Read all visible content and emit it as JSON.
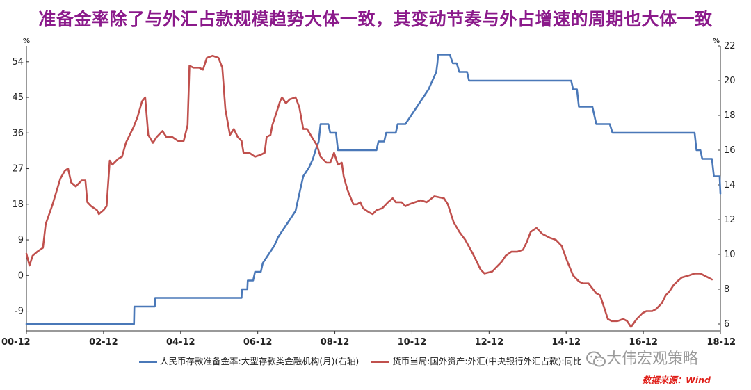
{
  "title": "准备金率除了与外汇占款规模趋势大体一致，其变动节奏与外占增速的周期也大体一致",
  "left_unit": "%",
  "right_unit": "%",
  "source": "数据来源：Wind",
  "watermark": "大伟宏观策略",
  "colors": {
    "blue": "#4a78b8",
    "red": "#c0504d",
    "title": "#8b1a8b",
    "source": "#e0201a"
  },
  "chart_data": {
    "type": "line",
    "xlabels": [
      "00-12",
      "02-12",
      "04-12",
      "06-12",
      "08-12",
      "10-12",
      "12-12",
      "14-12",
      "16-12",
      "18-12"
    ],
    "xlim": [
      2000.92,
      2018.92
    ],
    "left_axis": {
      "ylim": [
        -14,
        58
      ],
      "ticks": [
        "-9",
        "0",
        "9",
        "18",
        "27",
        "36",
        "45",
        "54"
      ]
    },
    "right_axis": {
      "ylim": [
        5.6,
        22
      ],
      "ticks": [
        "6",
        "8",
        "10",
        "12",
        "14",
        "16",
        "18",
        "20",
        "22"
      ]
    },
    "series": [
      {
        "name": "人民币存款准备金率:大型存款类金融机构(月)(右轴)",
        "axis": "right",
        "color": "#4a78b8",
        "points": [
          [
            2000.92,
            6
          ],
          [
            2003.71,
            6
          ],
          [
            2003.72,
            7
          ],
          [
            2004.25,
            7
          ],
          [
            2004.26,
            7.5
          ],
          [
            2006.5,
            7.5
          ],
          [
            2006.51,
            8
          ],
          [
            2006.65,
            8
          ],
          [
            2006.66,
            8.5
          ],
          [
            2006.8,
            8.5
          ],
          [
            2006.85,
            9
          ],
          [
            2007.0,
            9
          ],
          [
            2007.05,
            9.5
          ],
          [
            2007.2,
            10
          ],
          [
            2007.35,
            10.5
          ],
          [
            2007.45,
            11
          ],
          [
            2007.6,
            11.5
          ],
          [
            2007.75,
            12
          ],
          [
            2007.9,
            12.5
          ],
          [
            2008.0,
            13.5
          ],
          [
            2008.1,
            14.5
          ],
          [
            2008.25,
            15
          ],
          [
            2008.35,
            15.5
          ],
          [
            2008.42,
            16
          ],
          [
            2008.5,
            16.5
          ],
          [
            2008.55,
            17.5
          ],
          [
            2008.75,
            17.5
          ],
          [
            2008.8,
            17
          ],
          [
            2008.95,
            17
          ],
          [
            2009.0,
            16
          ],
          [
            2010.0,
            16
          ],
          [
            2010.05,
            16.5
          ],
          [
            2010.2,
            16.5
          ],
          [
            2010.25,
            17
          ],
          [
            2010.5,
            17
          ],
          [
            2010.55,
            17.5
          ],
          [
            2010.75,
            17.5
          ],
          [
            2010.9,
            18
          ],
          [
            2011.05,
            18.5
          ],
          [
            2011.2,
            19
          ],
          [
            2011.35,
            19.5
          ],
          [
            2011.45,
            20
          ],
          [
            2011.55,
            20.5
          ],
          [
            2011.58,
            21
          ],
          [
            2011.6,
            21.5
          ],
          [
            2011.9,
            21.5
          ],
          [
            2011.98,
            21
          ],
          [
            2012.08,
            21
          ],
          [
            2012.15,
            20.5
          ],
          [
            2012.35,
            20.5
          ],
          [
            2012.4,
            20
          ],
          [
            2015.05,
            20
          ],
          [
            2015.1,
            19.5
          ],
          [
            2015.2,
            19.5
          ],
          [
            2015.25,
            18.5
          ],
          [
            2015.6,
            18.5
          ],
          [
            2015.7,
            17.5
          ],
          [
            2016.05,
            17.5
          ],
          [
            2016.12,
            17
          ],
          [
            2018.25,
            17
          ],
          [
            2018.3,
            16
          ],
          [
            2018.4,
            16
          ],
          [
            2018.45,
            15.5
          ],
          [
            2018.7,
            15.5
          ],
          [
            2018.75,
            14.5
          ],
          [
            2018.9,
            14.5
          ],
          [
            2018.92,
            13.5
          ]
        ]
      },
      {
        "name": "货币当局:国外资产:外汇(中央银行外汇占款):同比",
        "axis": "left",
        "color": "#c0504d",
        "points": [
          [
            2000.92,
            5.5
          ],
          [
            2001.0,
            2.5
          ],
          [
            2001.08,
            5
          ],
          [
            2001.2,
            6
          ],
          [
            2001.35,
            7
          ],
          [
            2001.42,
            13
          ],
          [
            2001.6,
            18
          ],
          [
            2001.8,
            24.5
          ],
          [
            2001.92,
            26.5
          ],
          [
            2002.0,
            27
          ],
          [
            2002.08,
            23.5
          ],
          [
            2002.2,
            22.5
          ],
          [
            2002.35,
            24
          ],
          [
            2002.45,
            24
          ],
          [
            2002.5,
            18.5
          ],
          [
            2002.6,
            17.5
          ],
          [
            2002.75,
            16.5
          ],
          [
            2002.8,
            15.5
          ],
          [
            2002.92,
            16.5
          ],
          [
            2003.0,
            17.5
          ],
          [
            2003.08,
            29
          ],
          [
            2003.15,
            28
          ],
          [
            2003.3,
            29.5
          ],
          [
            2003.4,
            30
          ],
          [
            2003.5,
            33.5
          ],
          [
            2003.7,
            37.5
          ],
          [
            2003.8,
            40
          ],
          [
            2003.92,
            44
          ],
          [
            2004.0,
            45
          ],
          [
            2004.08,
            35.5
          ],
          [
            2004.2,
            33.5
          ],
          [
            2004.3,
            35
          ],
          [
            2004.45,
            36.5
          ],
          [
            2004.55,
            35
          ],
          [
            2004.7,
            35
          ],
          [
            2004.85,
            34
          ],
          [
            2005.0,
            34
          ],
          [
            2005.1,
            38
          ],
          [
            2005.15,
            53
          ],
          [
            2005.25,
            52.5
          ],
          [
            2005.4,
            52.5
          ],
          [
            2005.5,
            52
          ],
          [
            2005.6,
            55
          ],
          [
            2005.75,
            55.5
          ],
          [
            2005.9,
            55
          ],
          [
            2006.0,
            52.5
          ],
          [
            2006.08,
            42
          ],
          [
            2006.2,
            35.5
          ],
          [
            2006.3,
            37
          ],
          [
            2006.4,
            35
          ],
          [
            2006.5,
            34
          ],
          [
            2006.55,
            31
          ],
          [
            2006.7,
            31
          ],
          [
            2006.85,
            30
          ],
          [
            2007.0,
            30.5
          ],
          [
            2007.1,
            31
          ],
          [
            2007.15,
            35
          ],
          [
            2007.25,
            35.5
          ],
          [
            2007.3,
            38
          ],
          [
            2007.4,
            41
          ],
          [
            2007.5,
            44
          ],
          [
            2007.55,
            45
          ],
          [
            2007.65,
            43.5
          ],
          [
            2007.75,
            44.5
          ],
          [
            2007.9,
            45
          ],
          [
            2008.0,
            42.5
          ],
          [
            2008.1,
            37
          ],
          [
            2008.2,
            37
          ],
          [
            2008.35,
            34.5
          ],
          [
            2008.45,
            33
          ],
          [
            2008.55,
            30
          ],
          [
            2008.7,
            28.5
          ],
          [
            2008.8,
            28.5
          ],
          [
            2008.9,
            31
          ],
          [
            2009.0,
            28
          ],
          [
            2009.1,
            28.5
          ],
          [
            2009.15,
            25
          ],
          [
            2009.25,
            21.5
          ],
          [
            2009.4,
            18
          ],
          [
            2009.5,
            18
          ],
          [
            2009.58,
            18.5
          ],
          [
            2009.65,
            17
          ],
          [
            2009.8,
            16
          ],
          [
            2009.9,
            15.5
          ],
          [
            2010.0,
            16.5
          ],
          [
            2010.15,
            17
          ],
          [
            2010.3,
            18.5
          ],
          [
            2010.42,
            19.5
          ],
          [
            2010.5,
            18.5
          ],
          [
            2010.65,
            18.5
          ],
          [
            2010.75,
            17.5
          ],
          [
            2010.85,
            18
          ],
          [
            2011.0,
            18.5
          ],
          [
            2011.15,
            19
          ],
          [
            2011.3,
            18.5
          ],
          [
            2011.5,
            20
          ],
          [
            2011.75,
            19.5
          ],
          [
            2011.85,
            18
          ],
          [
            2012.0,
            13.5
          ],
          [
            2012.15,
            11
          ],
          [
            2012.3,
            9
          ],
          [
            2012.5,
            5.5
          ],
          [
            2012.6,
            3.5
          ],
          [
            2012.7,
            1.5
          ],
          [
            2012.8,
            0.5
          ],
          [
            2013.0,
            1
          ],
          [
            2013.1,
            2
          ],
          [
            2013.2,
            3
          ],
          [
            2013.25,
            3.5
          ],
          [
            2013.35,
            5
          ],
          [
            2013.5,
            6
          ],
          [
            2013.65,
            6
          ],
          [
            2013.8,
            6.5
          ],
          [
            2013.9,
            8.5
          ],
          [
            2014.0,
            11
          ],
          [
            2014.15,
            12
          ],
          [
            2014.3,
            10.5
          ],
          [
            2014.5,
            9.5
          ],
          [
            2014.65,
            9
          ],
          [
            2014.8,
            7.5
          ],
          [
            2014.95,
            3.5
          ],
          [
            2015.1,
            0
          ],
          [
            2015.25,
            -1.5
          ],
          [
            2015.35,
            -2
          ],
          [
            2015.5,
            -2
          ],
          [
            2015.58,
            -3
          ],
          [
            2015.7,
            -4.5
          ],
          [
            2015.8,
            -5
          ],
          [
            2015.9,
            -8
          ],
          [
            2016.0,
            -11
          ],
          [
            2016.1,
            -11.5
          ],
          [
            2016.25,
            -11.5
          ],
          [
            2016.4,
            -11
          ],
          [
            2016.5,
            -11.5
          ],
          [
            2016.6,
            -13
          ],
          [
            2016.75,
            -11
          ],
          [
            2016.9,
            -9.5
          ],
          [
            2017.0,
            -9
          ],
          [
            2017.15,
            -9
          ],
          [
            2017.25,
            -8.5
          ],
          [
            2017.4,
            -7
          ],
          [
            2017.5,
            -5
          ],
          [
            2017.6,
            -4
          ],
          [
            2017.7,
            -2.5
          ],
          [
            2017.8,
            -1.5
          ],
          [
            2017.92,
            -0.5
          ],
          [
            2018.1,
            0
          ],
          [
            2018.25,
            0.5
          ],
          [
            2018.4,
            0.5
          ],
          [
            2018.5,
            0
          ],
          [
            2018.6,
            -0.5
          ],
          [
            2018.7,
            -1
          ]
        ]
      }
    ]
  }
}
